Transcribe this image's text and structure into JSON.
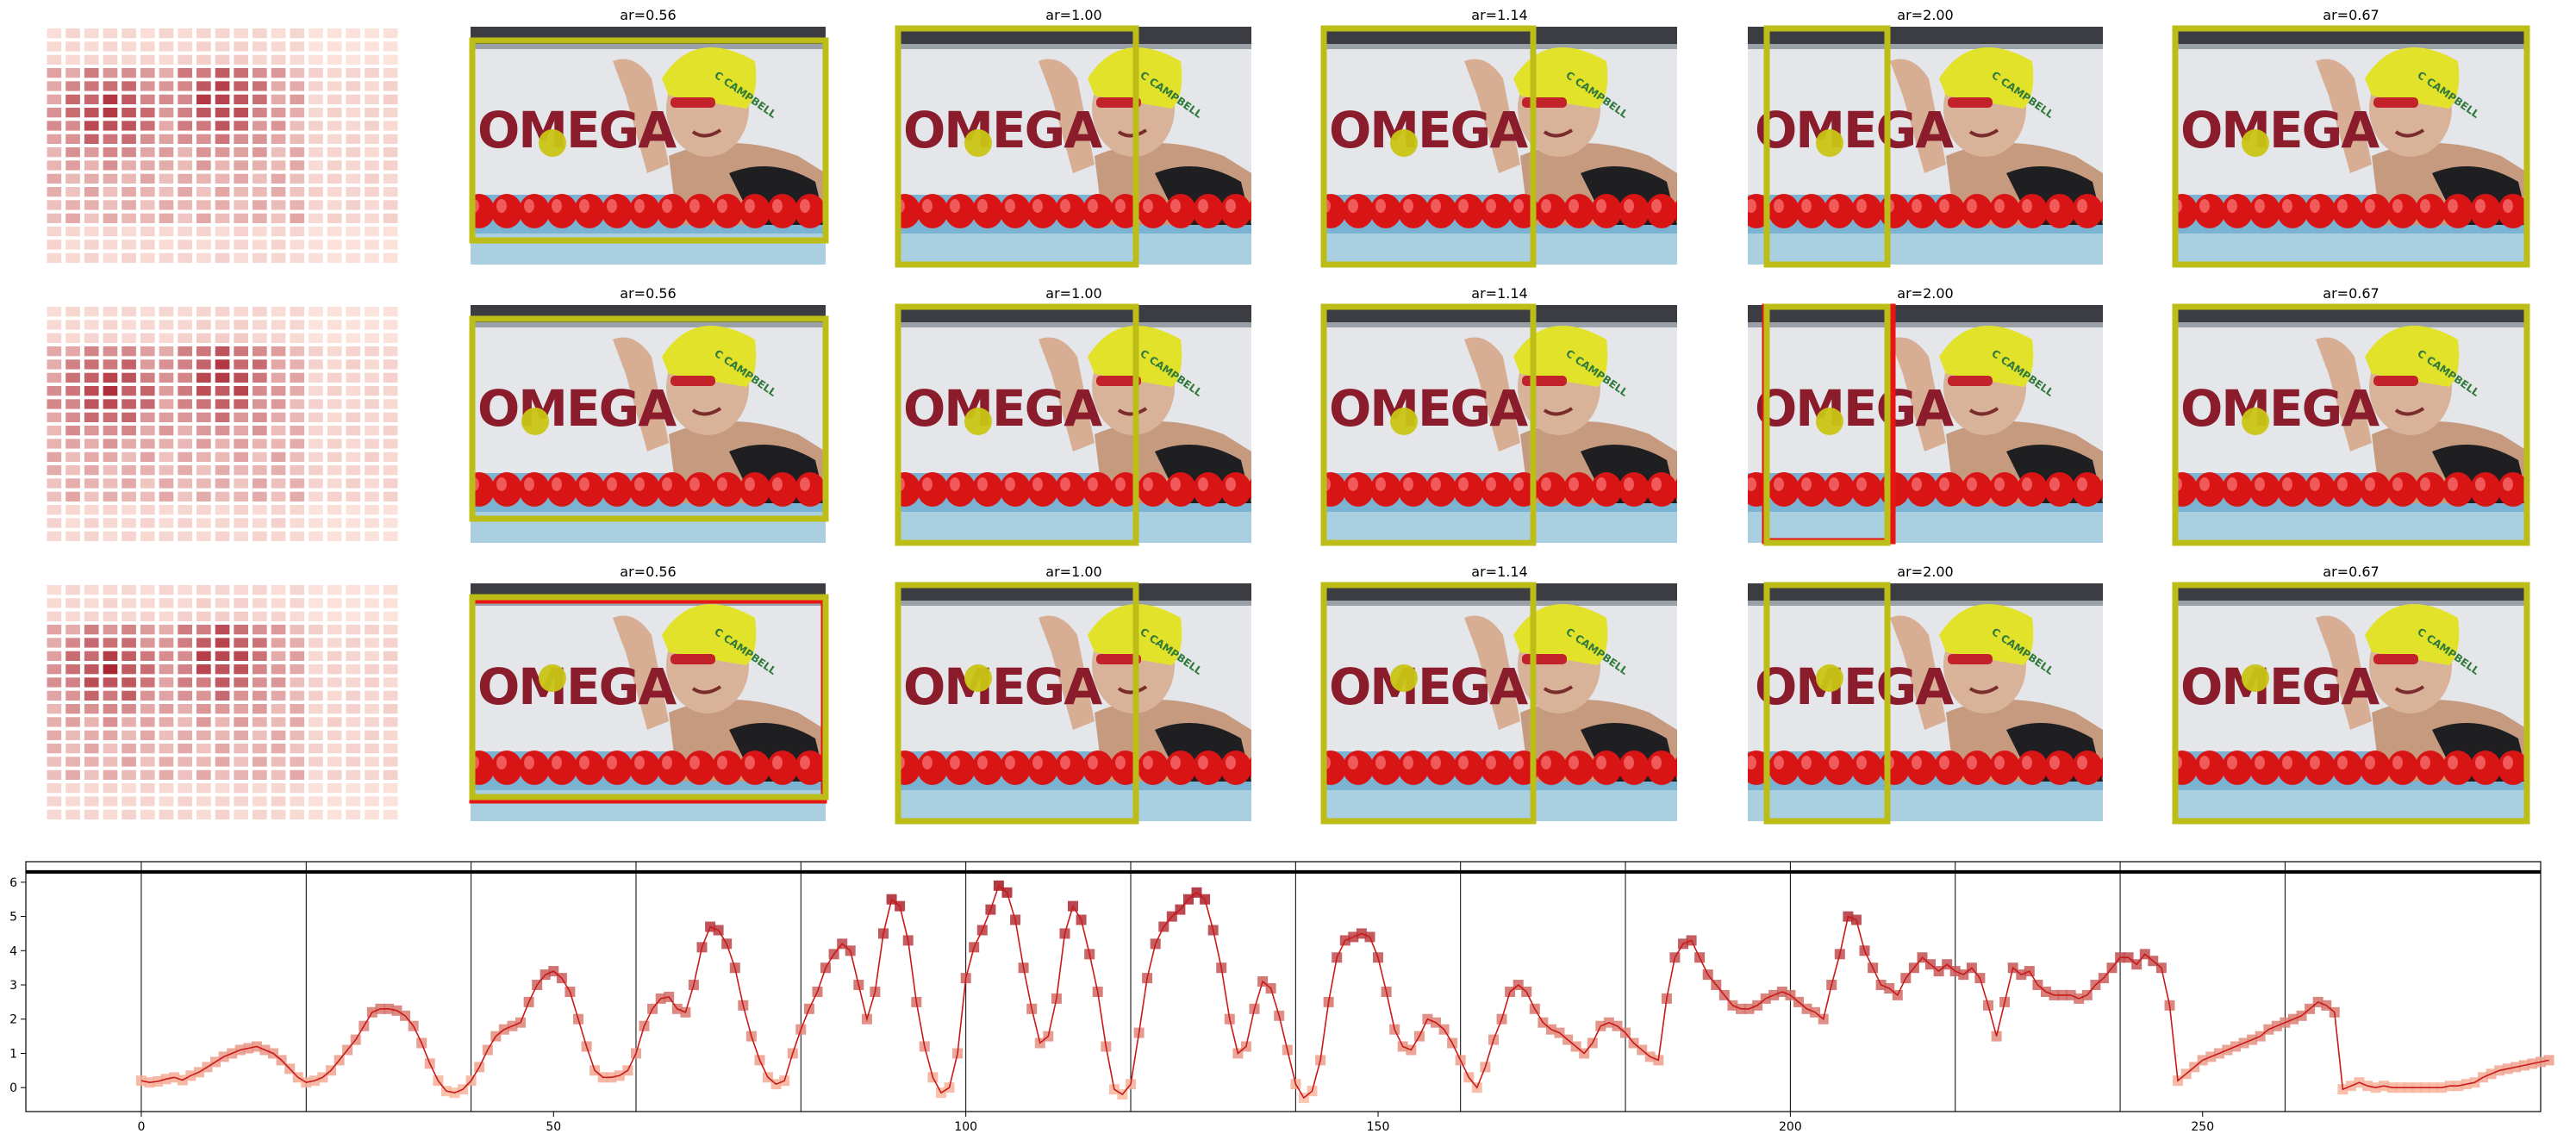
{
  "figure": {
    "panel_titles": [
      "ar=0.56",
      "ar=1.00",
      "ar=1.14",
      "ar=2.00",
      "ar=0.67"
    ],
    "image_logo_text": "OMEGA",
    "cap_text": "C CAMPBELL",
    "colors": {
      "box_selected": "#bdbd18",
      "box_alt": "#e81515",
      "dot": "#c9c515",
      "heat_low": "#fde4dc",
      "heat_high": "#a31423",
      "line": "#c81a1a"
    },
    "rows": [
      {
        "red_box_panel": -1,
        "red_box_kind": "none"
      },
      {
        "red_box_panel": 3,
        "red_box_kind": "vertical"
      },
      {
        "red_box_panel": 0,
        "red_box_kind": "horizontal"
      }
    ]
  },
  "chart_data": {
    "type": "line",
    "title": "",
    "xlabel": "",
    "ylabel": "",
    "xlim": [
      -14,
      291
    ],
    "ylim": [
      -0.7,
      6.6
    ],
    "xticks": [
      0,
      50,
      100,
      150,
      200,
      250
    ],
    "yticks": [
      0,
      1,
      2,
      3,
      4,
      5,
      6
    ],
    "top_hline": 6.3,
    "vlines": [
      0,
      20,
      40,
      60,
      80,
      100,
      120,
      140,
      160,
      180,
      200,
      220,
      240,
      260
    ],
    "x_step": 1,
    "values": [
      0.2,
      0.15,
      0.18,
      0.25,
      0.3,
      0.22,
      0.35,
      0.45,
      0.6,
      0.75,
      0.9,
      1.0,
      1.1,
      1.15,
      1.2,
      1.1,
      1.0,
      0.8,
      0.55,
      0.3,
      0.15,
      0.2,
      0.3,
      0.5,
      0.8,
      1.1,
      1.4,
      1.8,
      2.2,
      2.3,
      2.3,
      2.25,
      2.1,
      1.8,
      1.3,
      0.7,
      0.2,
      -0.1,
      -0.15,
      -0.05,
      0.2,
      0.6,
      1.1,
      1.5,
      1.7,
      1.8,
      1.9,
      2.5,
      3.0,
      3.3,
      3.4,
      3.2,
      2.8,
      2.0,
      1.2,
      0.5,
      0.3,
      0.3,
      0.35,
      0.5,
      1.0,
      1.8,
      2.3,
      2.6,
      2.65,
      2.3,
      2.2,
      3.0,
      4.1,
      4.7,
      4.6,
      4.2,
      3.5,
      2.4,
      1.5,
      0.8,
      0.3,
      0.1,
      0.2,
      1.0,
      1.7,
      2.3,
      2.8,
      3.5,
      3.9,
      4.2,
      4.0,
      3.0,
      2.0,
      2.8,
      4.5,
      5.5,
      5.3,
      4.3,
      2.5,
      1.2,
      0.3,
      -0.15,
      0.0,
      1.0,
      3.2,
      4.1,
      4.6,
      5.2,
      5.9,
      5.7,
      4.9,
      3.5,
      2.3,
      1.3,
      1.5,
      2.6,
      4.5,
      5.3,
      4.9,
      3.9,
      2.8,
      1.2,
      -0.05,
      -0.2,
      0.1,
      1.6,
      3.2,
      4.2,
      4.7,
      5.0,
      5.2,
      5.5,
      5.7,
      5.5,
      4.6,
      3.5,
      2.0,
      1.0,
      1.2,
      2.3,
      3.1,
      2.9,
      2.1,
      1.1,
      0.1,
      -0.3,
      -0.1,
      0.8,
      2.5,
      3.8,
      4.3,
      4.4,
      4.5,
      4.4,
      3.8,
      2.8,
      1.7,
      1.2,
      1.1,
      1.5,
      2.0,
      1.9,
      1.7,
      1.3,
      0.8,
      0.3,
      0.0,
      0.6,
      1.4,
      2.0,
      2.8,
      3.0,
      2.8,
      2.3,
      1.9,
      1.7,
      1.6,
      1.4,
      1.2,
      1.0,
      1.3,
      1.8,
      1.9,
      1.8,
      1.6,
      1.3,
      1.1,
      0.9,
      0.8,
      2.6,
      3.8,
      4.2,
      4.3,
      3.8,
      3.3,
      3.0,
      2.7,
      2.4,
      2.3,
      2.3,
      2.4,
      2.6,
      2.7,
      2.8,
      2.7,
      2.5,
      2.3,
      2.2,
      2.0,
      3.0,
      3.9,
      5.0,
      4.9,
      4.0,
      3.5,
      3.0,
      2.9,
      2.7,
      3.2,
      3.5,
      3.8,
      3.6,
      3.4,
      3.6,
      3.4,
      3.3,
      3.5,
      3.2,
      2.4,
      1.5,
      2.5,
      3.5,
      3.3,
      3.4,
      3.0,
      2.8,
      2.7,
      2.7,
      2.7,
      2.6,
      2.7,
      3.0,
      3.2,
      3.5,
      3.8,
      3.8,
      3.6,
      3.9,
      3.7,
      3.5,
      2.4,
      0.2,
      0.4,
      0.6,
      0.8,
      0.9,
      1.0,
      1.1,
      1.2,
      1.3,
      1.4,
      1.5,
      1.7,
      1.8,
      1.9,
      2.0,
      2.1,
      2.3,
      2.5,
      2.4,
      2.2,
      -0.05,
      0.05,
      0.15,
      0.05,
      0.0,
      0.05,
      0.0,
      0.0,
      0.0,
      0.0,
      0.0,
      0.0,
      0.0,
      0.05,
      0.05,
      0.1,
      0.15,
      0.3,
      0.4,
      0.5,
      0.55,
      0.6,
      0.65,
      0.7,
      0.75,
      0.8
    ]
  }
}
